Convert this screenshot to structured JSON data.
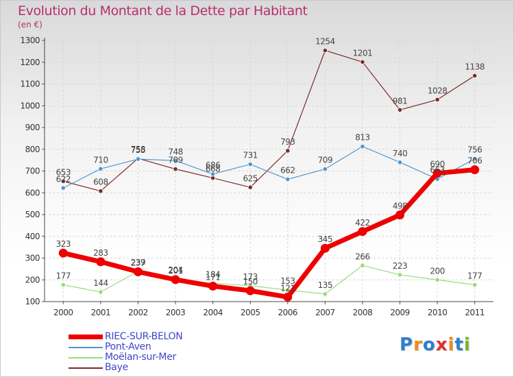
{
  "title": "Evolution du Montant de la Dette par Habitant",
  "subtitle": "(en €)",
  "logo": {
    "text": "Proxiti",
    "letter_colors": [
      "#2b7fd0",
      "#f08a1c",
      "#2b7fd0",
      "#e03030",
      "#f08a1c",
      "#2b7fd0",
      "#7ab52b"
    ]
  },
  "chart_data": {
    "type": "line",
    "title": "Evolution du Montant de la Dette par Habitant",
    "subtitle": "(en €)",
    "x": [
      "2000",
      "2001",
      "2002",
      "2003",
      "2004",
      "2005",
      "2006",
      "2007",
      "2008",
      "2009",
      "2010",
      "2011"
    ],
    "y_ticks": [
      100,
      200,
      300,
      400,
      500,
      600,
      700,
      800,
      900,
      1000,
      1100,
      1200,
      1300
    ],
    "ylim": [
      100,
      1300
    ],
    "grid": true,
    "legend_position": "bottom-left",
    "series": [
      {
        "name": "Baye",
        "color": "#7a2a2a",
        "values": [
          653,
          608,
          758,
          709,
          668,
          625,
          793,
          1254,
          1201,
          981,
          1028,
          1138
        ]
      },
      {
        "name": "Pont-Aven",
        "color": "#4a96d2",
        "values": [
          622,
          710,
          755,
          748,
          686,
          731,
          662,
          709,
          813,
          740,
          663,
          756
        ]
      },
      {
        "name": "Moëlan-sur-Mer",
        "color": "#96dc78",
        "values": [
          177,
          144,
          239,
          204,
          184,
          173,
          153,
          135,
          266,
          223,
          200,
          177
        ]
      },
      {
        "name": "RIEC-SUR-BELON",
        "color": "#ee0000",
        "values": [
          323,
          283,
          237,
          201,
          171,
          150,
          121,
          345,
          422,
          498,
          690,
          706
        ]
      }
    ]
  }
}
